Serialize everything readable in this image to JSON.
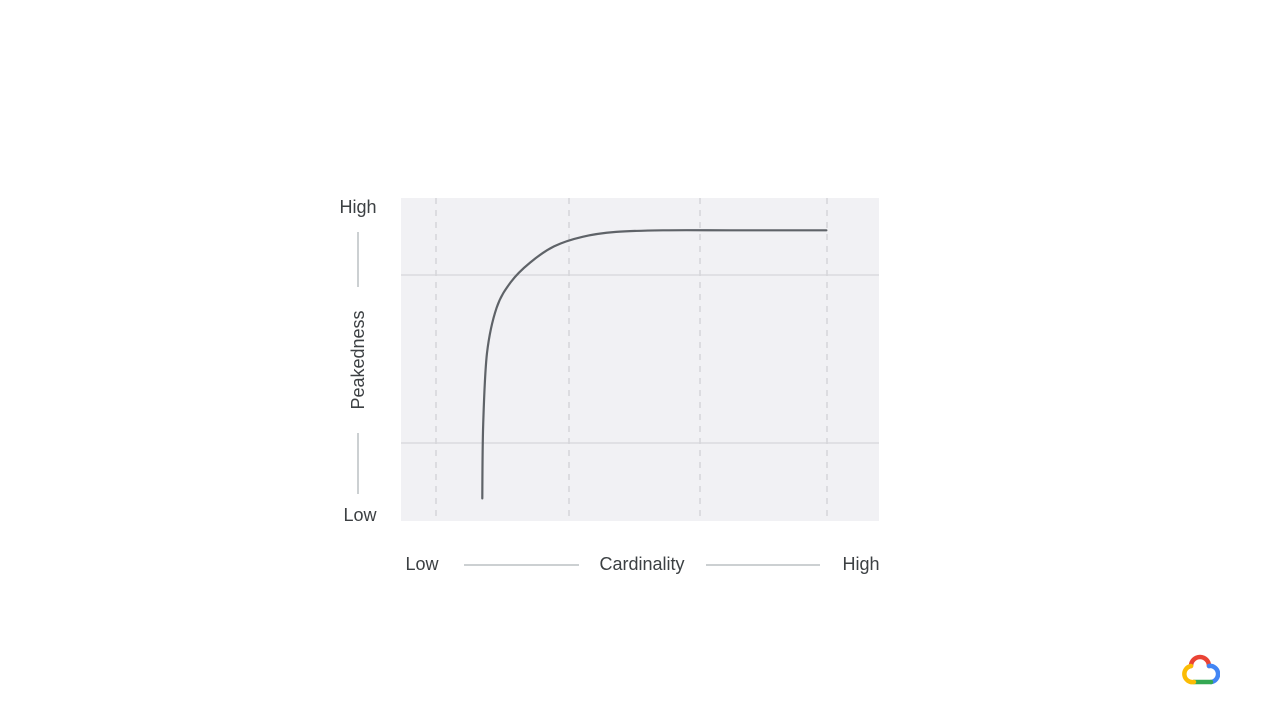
{
  "chart_data": {
    "type": "line",
    "title": "",
    "xlabel": "Cardinality",
    "ylabel": "Peakedness",
    "x_tick_labels": {
      "low": "Low",
      "high": "High"
    },
    "y_tick_labels": {
      "low": "Low",
      "high": "High"
    },
    "xlim": [
      0,
      1
    ],
    "ylim": [
      0,
      1
    ],
    "grid": true,
    "series": [
      {
        "color": "#5f6368",
        "points": [
          [
            0.17,
            0.07
          ],
          [
            0.172,
            0.3
          ],
          [
            0.18,
            0.52
          ],
          [
            0.2,
            0.66
          ],
          [
            0.23,
            0.74
          ],
          [
            0.27,
            0.8
          ],
          [
            0.32,
            0.85
          ],
          [
            0.38,
            0.88
          ],
          [
            0.45,
            0.895
          ],
          [
            0.55,
            0.9
          ],
          [
            0.7,
            0.9
          ],
          [
            0.89,
            0.9
          ]
        ]
      }
    ]
  },
  "colors": {
    "plot_background": "#f1f1f4",
    "line": "#5f6368",
    "grid": "#c8c8cc",
    "text": "#3c4043"
  },
  "logo": {
    "icon": "google-cloud-logo-icon"
  }
}
